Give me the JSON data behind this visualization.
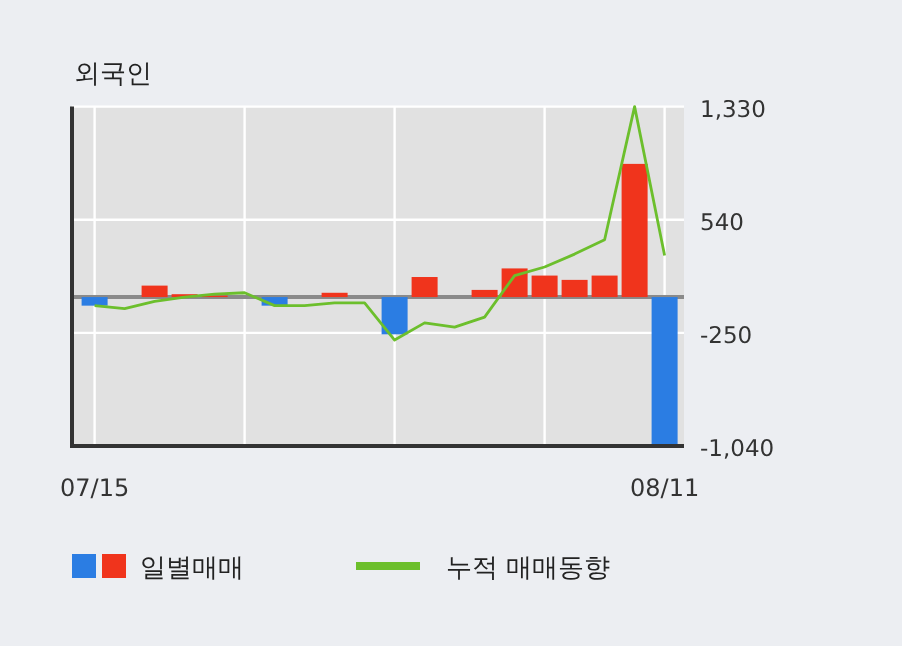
{
  "chart_data": {
    "type": "bar",
    "title": "외국인",
    "categories": [
      "07/15",
      null,
      null,
      null,
      null,
      null,
      null,
      null,
      null,
      null,
      null,
      null,
      null,
      null,
      null,
      null,
      null,
      null,
      null,
      "08/11"
    ],
    "series": [
      {
        "name": "일별매매",
        "colors": [
          "#2b7de3",
          "#f0341c",
          "#f0341c",
          "#f0341c",
          "#f0341c",
          "#f0341c",
          "#2b7de3",
          "#f0341c",
          "#f0341c",
          "#f0341c",
          "#2b7de3",
          "#f0341c",
          "#f0341c",
          "#f0341c",
          "#f0341c",
          "#f0341c",
          "#f0341c",
          "#f0341c",
          "#f0341c",
          "#2b7de3"
        ],
        "values": [
          -60,
          0,
          80,
          20,
          10,
          0,
          -60,
          0,
          30,
          0,
          -260,
          140,
          0,
          50,
          200,
          150,
          120,
          150,
          930,
          -1040
        ]
      },
      {
        "type": "line",
        "name": "누적 매매동향",
        "color": "#6cbf2c",
        "values": [
          -60,
          -80,
          -30,
          0,
          20,
          30,
          -60,
          -60,
          -40,
          -40,
          -300,
          -180,
          -210,
          -140,
          150,
          210,
          300,
          400,
          1330,
          290
        ]
      }
    ],
    "ylim": [
      -1040,
      1330
    ],
    "yticks": [
      {
        "value": 1330,
        "label": "1,330"
      },
      {
        "value": 540,
        "label": "540"
      },
      {
        "value": -250,
        "label": "-250"
      },
      {
        "value": -1040,
        "label": "-1,040"
      }
    ],
    "grid": true,
    "legend": "bottom"
  }
}
